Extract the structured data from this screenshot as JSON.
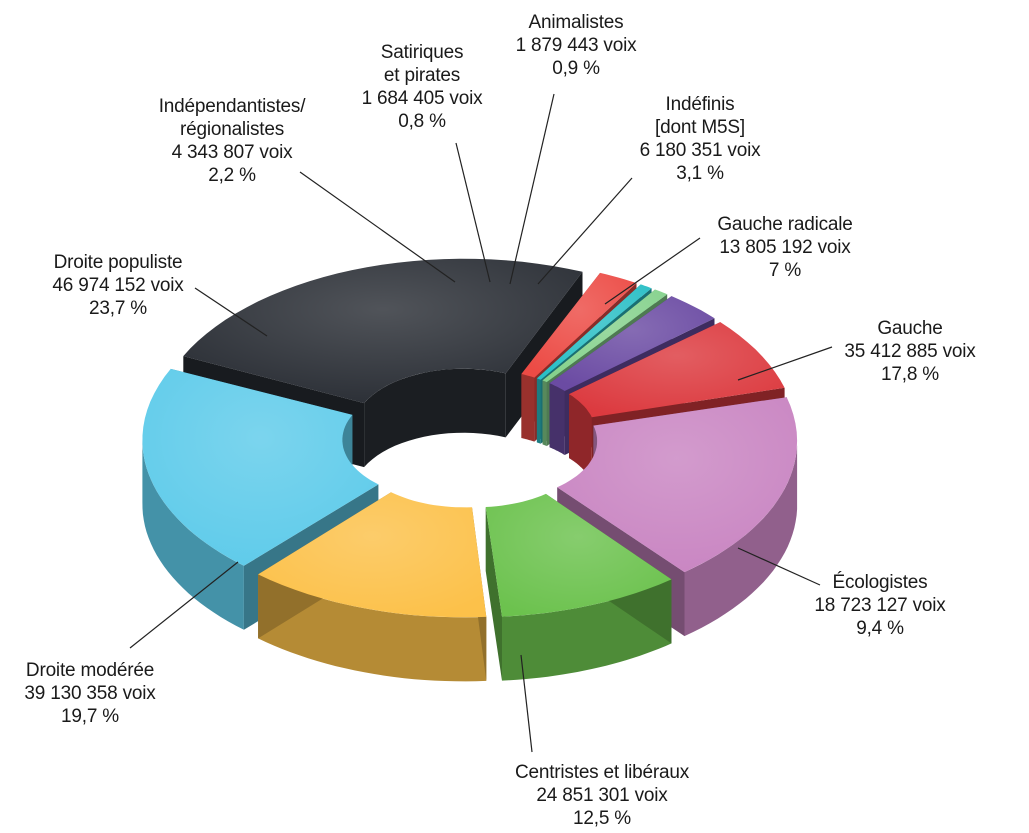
{
  "chart_data": {
    "type": "pie",
    "style": "3d-donut",
    "legend": "none",
    "slices": [
      {
        "name": "Droite populiste",
        "voix": "46 974 152 voix",
        "percent_label": "23,7 %",
        "value": 23.7,
        "color": "#2a2e35"
      },
      {
        "name": "Indépendantistes/ régionalistes",
        "voix": "4 343 807 voix",
        "percent_label": "2,2 %",
        "value": 2.2,
        "color": "#ec4b45"
      },
      {
        "name": "Satiriques et pirates",
        "voix": "1 684 405 voix",
        "percent_label": "0,8 %",
        "value": 0.8,
        "color": "#2bbfc6"
      },
      {
        "name": "Animalistes",
        "voix": "1 879 443 voix",
        "percent_label": "0,9 %",
        "value": 0.9,
        "color": "#86d28d"
      },
      {
        "name": "Indéfinis [dont M5S]",
        "voix": "6 180 351 voix",
        "percent_label": "3,1 %",
        "value": 3.1,
        "color": "#6b4ba3"
      },
      {
        "name": "Gauche radicale",
        "voix": "13 805 192 voix",
        "percent_label": "7 %",
        "value": 7.0,
        "color": "#dc3a3f"
      },
      {
        "name": "Gauche",
        "voix": "35 412 885 voix",
        "percent_label": "17,8 %",
        "value": 17.8,
        "color": "#c985c2"
      },
      {
        "name": "Écologistes",
        "voix": "18 723 127 voix",
        "percent_label": "9,4 %",
        "value": 9.4,
        "color": "#6cc24e"
      },
      {
        "name": "Centristes et libéraux",
        "voix": "24 851 301 voix",
        "percent_label": "12,5 %",
        "value": 12.5,
        "color": "#fcc14a"
      },
      {
        "name": "Droite modérée",
        "voix": "39 130 358 voix",
        "percent_label": "19,7 %",
        "value": 19.7,
        "color": "#5ecbea"
      }
    ],
    "labels": [
      {
        "lines": [
          "Droite populiste",
          "46 974 152 voix",
          "23,7 %"
        ]
      },
      {
        "lines": [
          "Indépendantistes/",
          "régionalistes",
          "4 343 807 voix",
          "2,2 %"
        ]
      },
      {
        "lines": [
          "Satiriques",
          "et pirates",
          "1 684 405 voix",
          "0,8 %"
        ]
      },
      {
        "lines": [
          "Animalistes",
          "1 879 443 voix",
          "0,9 %"
        ]
      },
      {
        "lines": [
          "Indéfinis",
          "[dont M5S]",
          "6 180 351 voix",
          "3,1 %"
        ]
      },
      {
        "lines": [
          "Gauche radicale",
          "13 805 192 voix",
          "7 %"
        ]
      },
      {
        "lines": [
          "Gauche",
          "35 412 885 voix",
          "17,8 %"
        ]
      },
      {
        "lines": [
          "Écologistes",
          "18 723 127 voix",
          "9,4 %"
        ]
      },
      {
        "lines": [
          "Centristes et libéraux",
          "24 851 301 voix",
          "12,5 %"
        ]
      },
      {
        "lines": [
          "Droite modérée",
          "39 130 358 voix",
          "19,7 %"
        ]
      }
    ]
  }
}
